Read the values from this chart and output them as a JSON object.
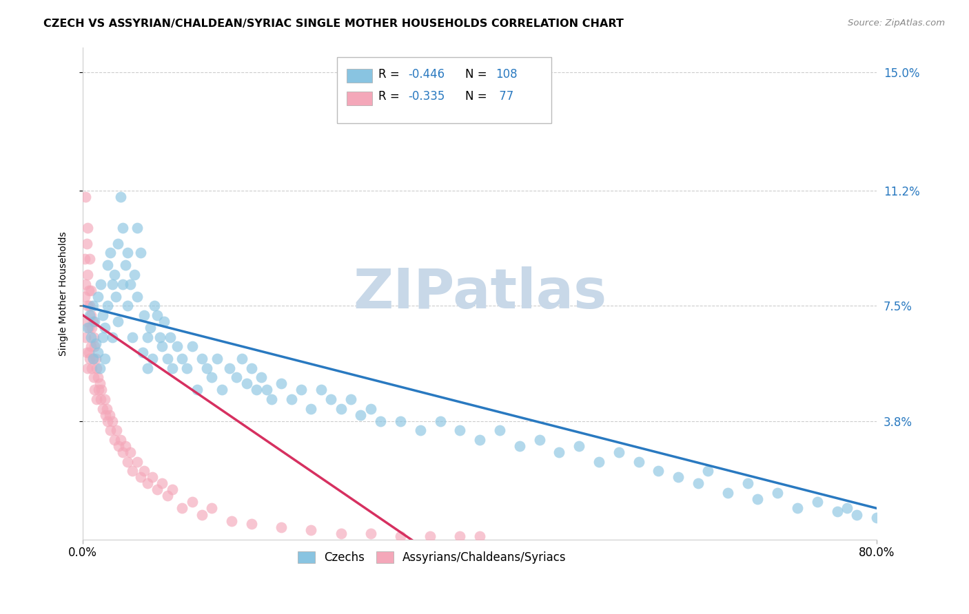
{
  "title": "CZECH VS ASSYRIAN/CHALDEAN/SYRIAC SINGLE MOTHER HOUSEHOLDS CORRELATION CHART",
  "source": "Source: ZipAtlas.com",
  "ylabel": "Single Mother Households",
  "xlim": [
    0.0,
    0.8
  ],
  "ylim": [
    0.0,
    0.158
  ],
  "yticks": [
    0.038,
    0.075,
    0.112,
    0.15
  ],
  "ytick_labels": [
    "3.8%",
    "7.5%",
    "11.2%",
    "15.0%"
  ],
  "blue_color": "#89C4E1",
  "pink_color": "#F4A7B9",
  "blue_line_color": "#2979C0",
  "pink_line_color": "#D63060",
  "watermark": "ZIPatlas",
  "watermark_color": "#C8D8E8",
  "background_color": "#ffffff",
  "grid_color": "#cccccc",
  "czechs_x": [
    0.005,
    0.007,
    0.008,
    0.01,
    0.01,
    0.012,
    0.013,
    0.015,
    0.015,
    0.017,
    0.018,
    0.02,
    0.02,
    0.022,
    0.022,
    0.025,
    0.025,
    0.028,
    0.03,
    0.03,
    0.032,
    0.033,
    0.035,
    0.035,
    0.038,
    0.04,
    0.04,
    0.043,
    0.045,
    0.045,
    0.048,
    0.05,
    0.052,
    0.055,
    0.055,
    0.058,
    0.06,
    0.062,
    0.065,
    0.065,
    0.068,
    0.07,
    0.072,
    0.075,
    0.078,
    0.08,
    0.082,
    0.085,
    0.088,
    0.09,
    0.095,
    0.1,
    0.105,
    0.11,
    0.115,
    0.12,
    0.125,
    0.13,
    0.135,
    0.14,
    0.148,
    0.155,
    0.16,
    0.165,
    0.17,
    0.175,
    0.18,
    0.185,
    0.19,
    0.2,
    0.21,
    0.22,
    0.23,
    0.24,
    0.25,
    0.26,
    0.27,
    0.28,
    0.29,
    0.3,
    0.32,
    0.34,
    0.36,
    0.38,
    0.4,
    0.42,
    0.44,
    0.46,
    0.48,
    0.5,
    0.52,
    0.54,
    0.56,
    0.58,
    0.6,
    0.62,
    0.65,
    0.68,
    0.72,
    0.76,
    0.78,
    0.8,
    0.63,
    0.67,
    0.7,
    0.74,
    0.77,
    0.81
  ],
  "czechs_y": [
    0.068,
    0.072,
    0.065,
    0.058,
    0.075,
    0.07,
    0.063,
    0.06,
    0.078,
    0.055,
    0.082,
    0.072,
    0.065,
    0.068,
    0.058,
    0.088,
    0.075,
    0.092,
    0.082,
    0.065,
    0.085,
    0.078,
    0.095,
    0.07,
    0.11,
    0.1,
    0.082,
    0.088,
    0.075,
    0.092,
    0.082,
    0.065,
    0.085,
    0.1,
    0.078,
    0.092,
    0.06,
    0.072,
    0.065,
    0.055,
    0.068,
    0.058,
    0.075,
    0.072,
    0.065,
    0.062,
    0.07,
    0.058,
    0.065,
    0.055,
    0.062,
    0.058,
    0.055,
    0.062,
    0.048,
    0.058,
    0.055,
    0.052,
    0.058,
    0.048,
    0.055,
    0.052,
    0.058,
    0.05,
    0.055,
    0.048,
    0.052,
    0.048,
    0.045,
    0.05,
    0.045,
    0.048,
    0.042,
    0.048,
    0.045,
    0.042,
    0.045,
    0.04,
    0.042,
    0.038,
    0.038,
    0.035,
    0.038,
    0.035,
    0.032,
    0.035,
    0.03,
    0.032,
    0.028,
    0.03,
    0.025,
    0.028,
    0.025,
    0.022,
    0.02,
    0.018,
    0.015,
    0.013,
    0.01,
    0.009,
    0.008,
    0.007,
    0.022,
    0.018,
    0.015,
    0.012,
    0.01,
    0.008
  ],
  "assyrian_x": [
    0.002,
    0.002,
    0.003,
    0.003,
    0.003,
    0.004,
    0.004,
    0.004,
    0.005,
    0.005,
    0.005,
    0.005,
    0.006,
    0.006,
    0.006,
    0.007,
    0.007,
    0.007,
    0.008,
    0.008,
    0.008,
    0.009,
    0.009,
    0.01,
    0.01,
    0.011,
    0.011,
    0.012,
    0.012,
    0.013,
    0.014,
    0.014,
    0.015,
    0.016,
    0.017,
    0.018,
    0.019,
    0.02,
    0.022,
    0.023,
    0.024,
    0.025,
    0.027,
    0.028,
    0.03,
    0.032,
    0.034,
    0.036,
    0.038,
    0.04,
    0.043,
    0.045,
    0.048,
    0.05,
    0.055,
    0.058,
    0.062,
    0.065,
    0.07,
    0.075,
    0.08,
    0.085,
    0.09,
    0.1,
    0.11,
    0.12,
    0.13,
    0.15,
    0.17,
    0.2,
    0.23,
    0.26,
    0.29,
    0.32,
    0.35,
    0.38,
    0.4
  ],
  "assyrian_y": [
    0.078,
    0.09,
    0.065,
    0.082,
    0.11,
    0.095,
    0.07,
    0.06,
    0.1,
    0.085,
    0.075,
    0.055,
    0.08,
    0.068,
    0.06,
    0.075,
    0.058,
    0.09,
    0.072,
    0.062,
    0.08,
    0.068,
    0.055,
    0.07,
    0.058,
    0.065,
    0.052,
    0.062,
    0.048,
    0.058,
    0.055,
    0.045,
    0.052,
    0.048,
    0.05,
    0.045,
    0.048,
    0.042,
    0.045,
    0.04,
    0.042,
    0.038,
    0.04,
    0.035,
    0.038,
    0.032,
    0.035,
    0.03,
    0.032,
    0.028,
    0.03,
    0.025,
    0.028,
    0.022,
    0.025,
    0.02,
    0.022,
    0.018,
    0.02,
    0.016,
    0.018,
    0.014,
    0.016,
    0.01,
    0.012,
    0.008,
    0.01,
    0.006,
    0.005,
    0.004,
    0.003,
    0.002,
    0.002,
    0.001,
    0.001,
    0.001,
    0.001
  ]
}
